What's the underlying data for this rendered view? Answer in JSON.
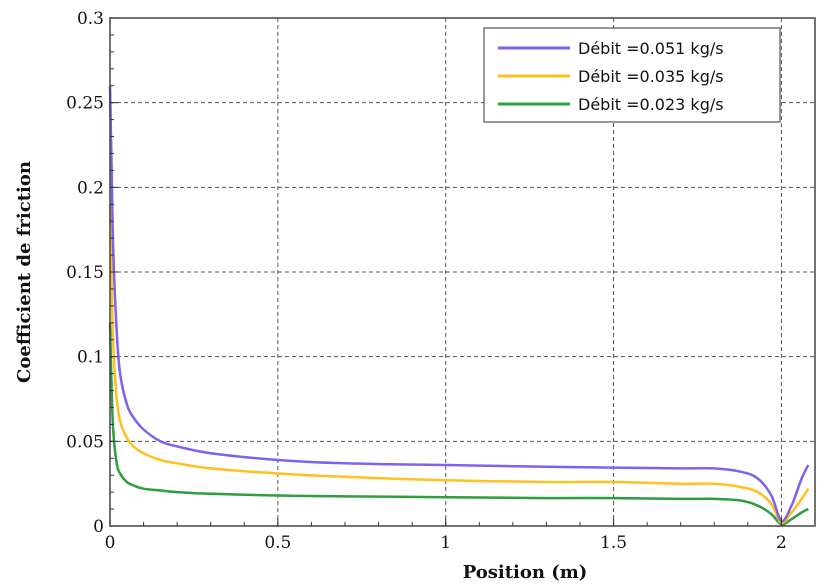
{
  "chart_data": {
    "type": "line",
    "title": "",
    "xlabel": "Position (m)",
    "ylabel": "Coefficient de friction",
    "xlim": [
      0,
      2.1
    ],
    "ylim": [
      0,
      0.3
    ],
    "x_ticks": [
      0,
      0.5,
      1,
      1.5,
      2
    ],
    "x_tick_labels": [
      "0",
      "0.5",
      "1",
      "1.5",
      "2"
    ],
    "y_ticks": [
      0,
      0.05,
      0.1,
      0.15,
      0.2,
      0.25,
      0.3
    ],
    "y_tick_labels": [
      "0",
      "0.05",
      "0.1",
      "0.15",
      "0.2",
      "0.25",
      "0.3"
    ],
    "grid": true,
    "legend_position": "top-right",
    "series": [
      {
        "name": "Débit =0.051 kg/s",
        "color": "#8060f0",
        "x": [
          0,
          0.005,
          0.01,
          0.02,
          0.03,
          0.05,
          0.07,
          0.1,
          0.15,
          0.2,
          0.3,
          0.5,
          0.7,
          1.0,
          1.3,
          1.5,
          1.7,
          1.8,
          1.88,
          1.93,
          1.97,
          2.0,
          2.03,
          2.06,
          2.08
        ],
        "y": [
          0.26,
          0.21,
          0.16,
          0.115,
          0.09,
          0.072,
          0.064,
          0.057,
          0.05,
          0.047,
          0.043,
          0.039,
          0.037,
          0.036,
          0.035,
          0.0345,
          0.034,
          0.034,
          0.032,
          0.028,
          0.018,
          0.003,
          0.012,
          0.028,
          0.036
        ]
      },
      {
        "name": "Débit =0.035 kg/s",
        "color": "#ffc020",
        "x": [
          0,
          0.005,
          0.01,
          0.02,
          0.03,
          0.05,
          0.07,
          0.1,
          0.15,
          0.2,
          0.3,
          0.5,
          0.7,
          1.0,
          1.3,
          1.5,
          1.7,
          1.8,
          1.88,
          1.93,
          1.97,
          2.0,
          2.03,
          2.06,
          2.08
        ],
        "y": [
          0.19,
          0.14,
          0.105,
          0.075,
          0.062,
          0.052,
          0.047,
          0.043,
          0.039,
          0.037,
          0.034,
          0.031,
          0.029,
          0.027,
          0.026,
          0.026,
          0.025,
          0.025,
          0.023,
          0.02,
          0.013,
          0.002,
          0.008,
          0.016,
          0.022
        ]
      },
      {
        "name": "Débit =0.023 kg/s",
        "color": "#2e9e3e",
        "x": [
          0,
          0.005,
          0.01,
          0.02,
          0.03,
          0.05,
          0.07,
          0.1,
          0.15,
          0.2,
          0.3,
          0.5,
          0.7,
          1.0,
          1.3,
          1.5,
          1.7,
          1.8,
          1.88,
          1.93,
          1.97,
          2.0,
          2.03,
          2.06,
          2.08
        ],
        "y": [
          0.12,
          0.08,
          0.055,
          0.037,
          0.031,
          0.026,
          0.024,
          0.022,
          0.021,
          0.02,
          0.019,
          0.018,
          0.0175,
          0.017,
          0.0165,
          0.0165,
          0.016,
          0.016,
          0.015,
          0.012,
          0.007,
          0.001,
          0.004,
          0.008,
          0.01
        ]
      }
    ]
  }
}
